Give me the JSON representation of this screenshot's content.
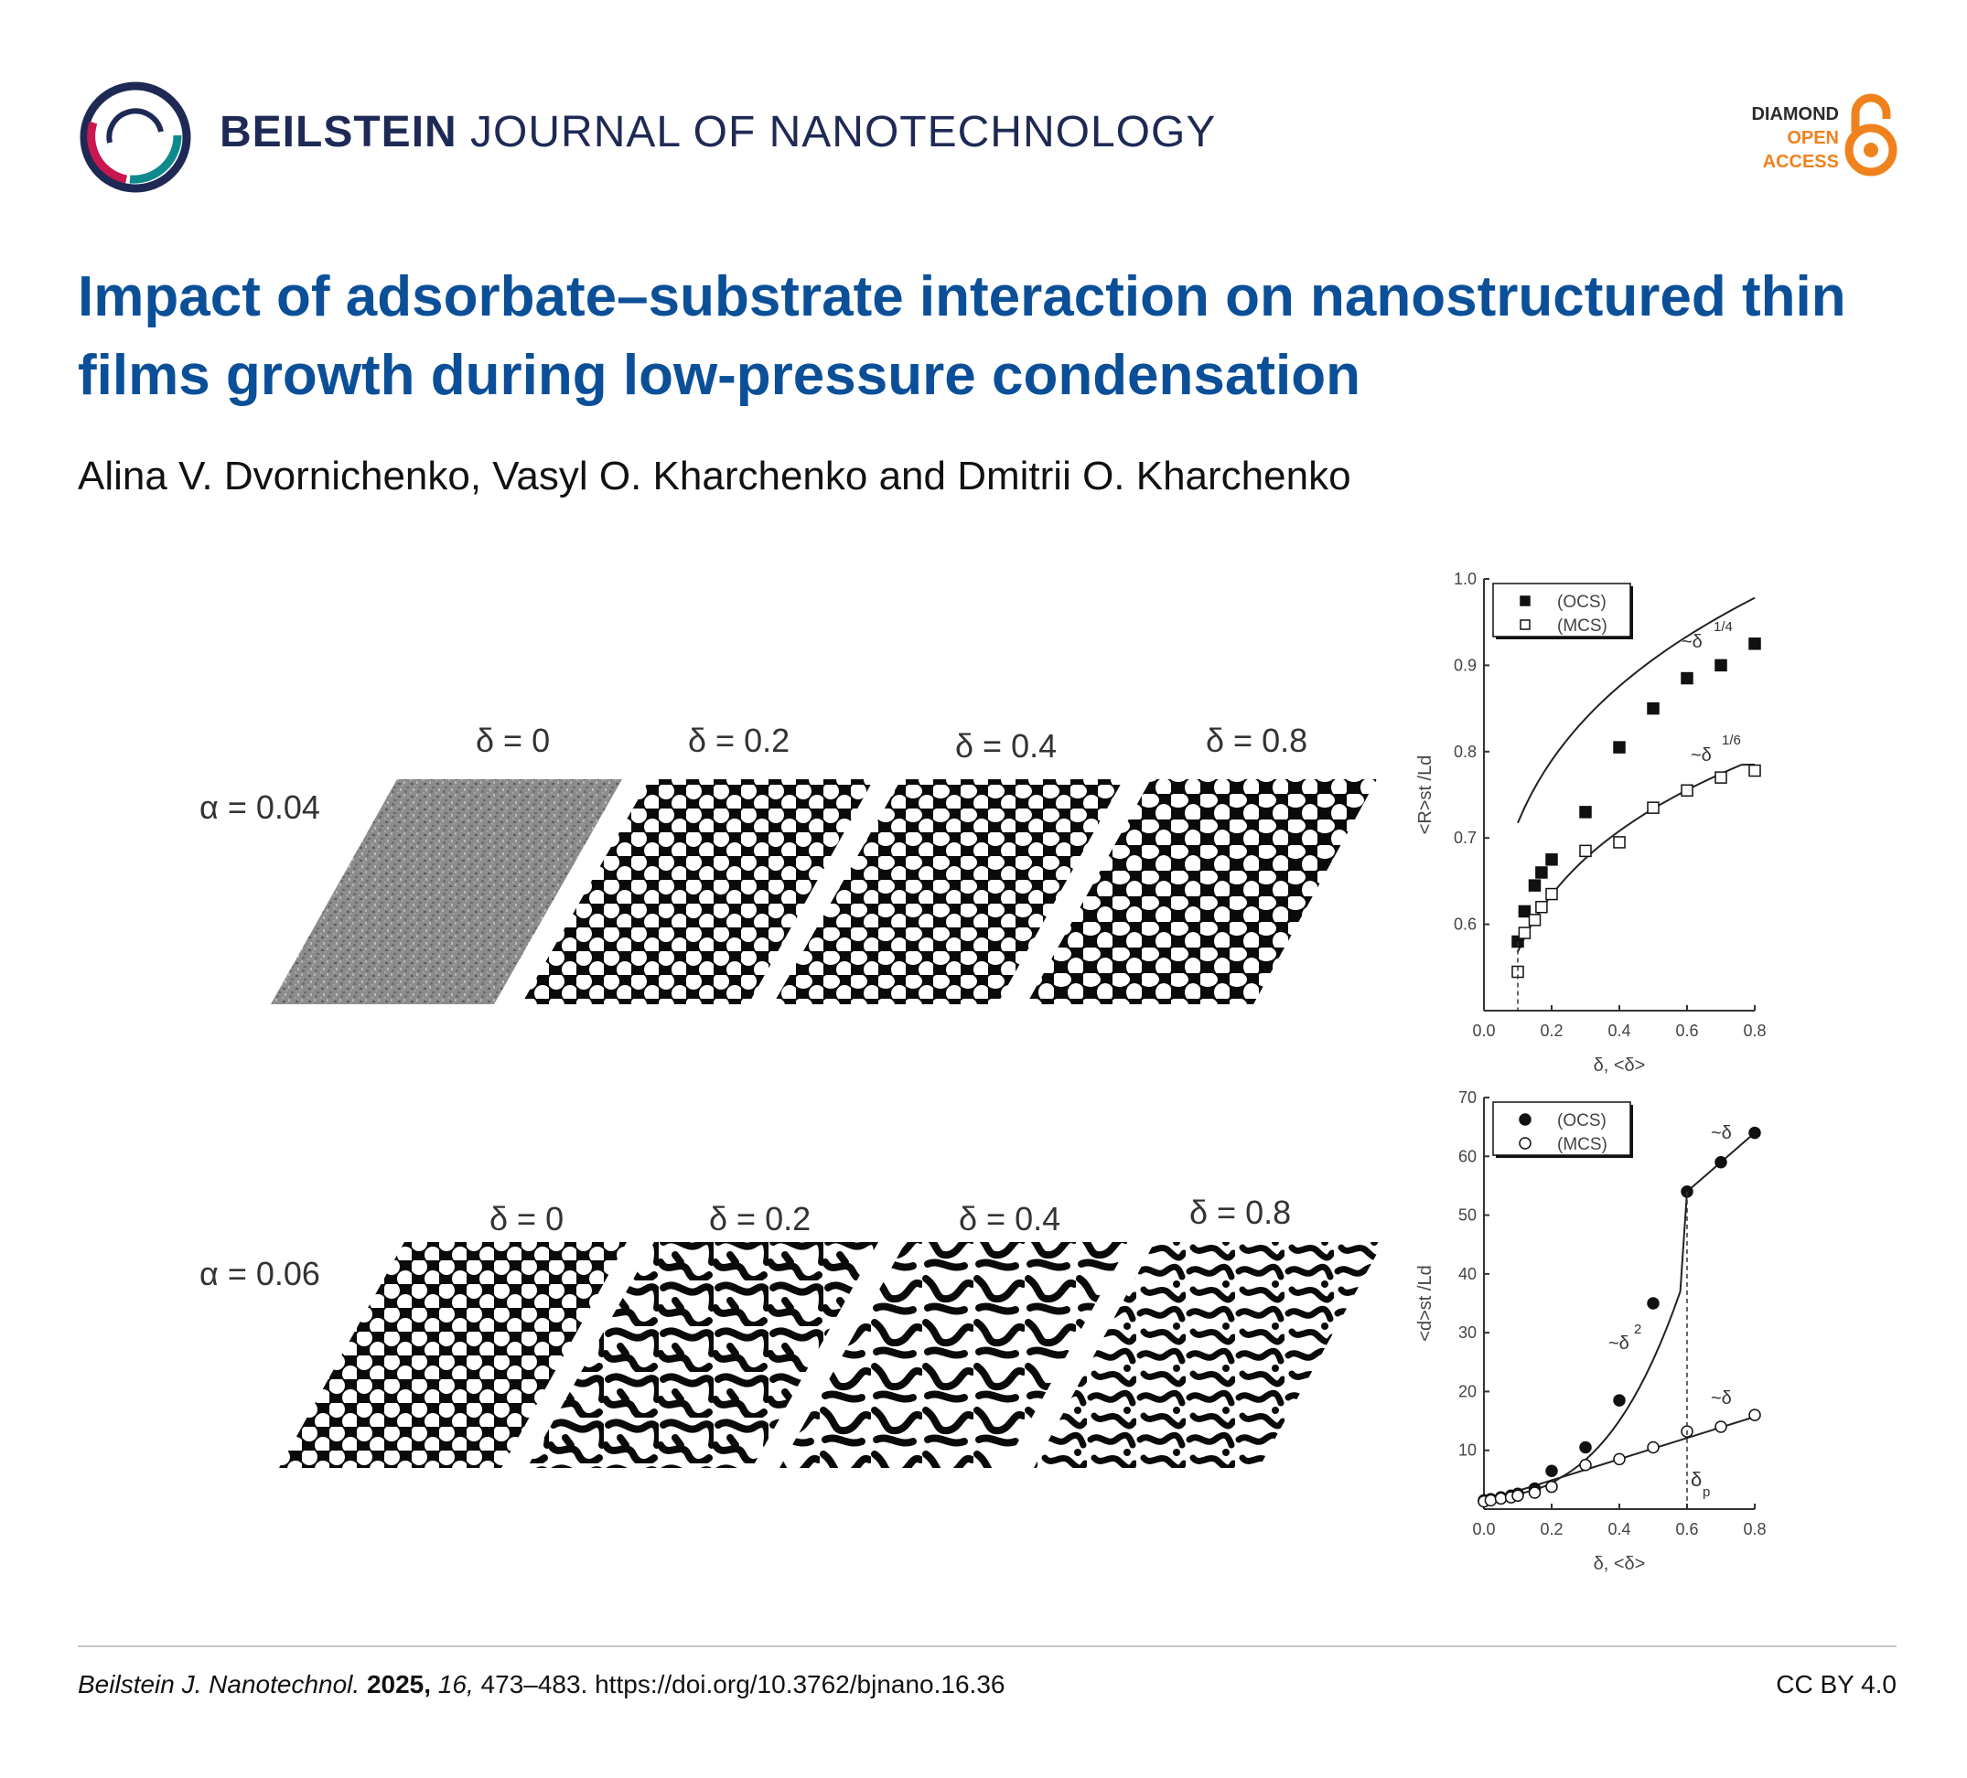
{
  "header": {
    "brand_bold": "BEILSTEIN",
    "brand_rest": "JOURNAL OF NANOTECHNOLOGY",
    "badge_line1": "DIAMOND",
    "badge_line2": "OPEN",
    "badge_line3": "ACCESS",
    "colors": {
      "brand_navy": "#1e2a55",
      "badge_orange": "#f0821e",
      "title_blue": "#0b4f98"
    }
  },
  "article": {
    "title": "Impact of adsorbate–substrate interaction on nanostructured thin films growth during low-pressure condensation",
    "authors": "Alina V. Dvornichenko, Vasyl O. Kharchenko and Dmitrii O. Kharchenko"
  },
  "figure": {
    "rows": [
      {
        "label": "α = 0.04",
        "panels": [
          "δ = 0",
          "δ = 0.2",
          "δ = 0.4",
          "δ = 0.8"
        ]
      },
      {
        "label": "α = 0.06",
        "panels": [
          "δ = 0",
          "δ = 0.2",
          "δ = 0.4",
          "δ = 0.8"
        ]
      }
    ]
  },
  "chart_data": [
    {
      "type": "scatter",
      "xlabel": "δ, <δ>",
      "ylabel": "<R>st /Ld",
      "xlim": [
        0.0,
        0.8
      ],
      "ylim": [
        0.5,
        1.0
      ],
      "xticks": [
        "0.0",
        "0.2",
        "0.4",
        "0.6",
        "0.8"
      ],
      "yticks": [
        "0.6",
        "0.7",
        "0.8",
        "0.9",
        "1.0"
      ],
      "legend": "top-left",
      "series": [
        {
          "name": "(OCS)",
          "marker": "filled-square",
          "x": [
            0.1,
            0.12,
            0.15,
            0.17,
            0.2,
            0.3,
            0.4,
            0.5,
            0.6,
            0.7,
            0.8
          ],
          "y": [
            0.58,
            0.615,
            0.645,
            0.66,
            0.675,
            0.73,
            0.805,
            0.85,
            0.885,
            0.9,
            0.925
          ]
        },
        {
          "name": "(MCS)",
          "marker": "open-square",
          "x": [
            0.1,
            0.12,
            0.15,
            0.17,
            0.2,
            0.3,
            0.4,
            0.5,
            0.6,
            0.7,
            0.8
          ],
          "y": [
            0.545,
            0.59,
            0.605,
            0.62,
            0.635,
            0.685,
            0.695,
            0.735,
            0.755,
            0.77,
            0.778
          ]
        }
      ],
      "annotations": [
        "~δ",
        "1/4",
        "~δ",
        "1/6"
      ]
    },
    {
      "type": "scatter",
      "xlabel": "δ, <δ>",
      "ylabel": "<d>st /Ld",
      "xlim": [
        0.0,
        0.8
      ],
      "ylim": [
        0,
        70
      ],
      "xticks": [
        "0.0",
        "0.2",
        "0.4",
        "0.6",
        "0.8"
      ],
      "yticks": [
        "10",
        "20",
        "30",
        "40",
        "50",
        "60",
        "70"
      ],
      "legend": "top-left",
      "series": [
        {
          "name": "(OCS)",
          "marker": "filled-circle",
          "x": [
            0.0,
            0.02,
            0.05,
            0.08,
            0.1,
            0.15,
            0.2,
            0.3,
            0.4,
            0.5,
            0.6,
            0.7,
            0.8
          ],
          "y": [
            1.5,
            1.7,
            2.0,
            2.3,
            2.6,
            3.5,
            6.5,
            10.5,
            18.5,
            35,
            54,
            59,
            64
          ]
        },
        {
          "name": "(MCS)",
          "marker": "open-circle",
          "x": [
            0.0,
            0.02,
            0.05,
            0.08,
            0.1,
            0.15,
            0.2,
            0.3,
            0.4,
            0.5,
            0.6,
            0.7,
            0.8
          ],
          "y": [
            1.3,
            1.5,
            1.8,
            2.0,
            2.3,
            2.8,
            3.8,
            7.5,
            8.5,
            10.5,
            13.2,
            14,
            16
          ]
        }
      ],
      "annotations": [
        "~δ",
        "~δ",
        "2",
        "~δ",
        "δ",
        "p"
      ]
    }
  ],
  "footer": {
    "journal_abbr": "Beilstein J. Nanotechnol.",
    "year": "2025,",
    "volume": "16,",
    "pages_doi": "473–483. https://doi.org/10.3762/bjnano.16.36",
    "license": "CC BY 4.0"
  }
}
